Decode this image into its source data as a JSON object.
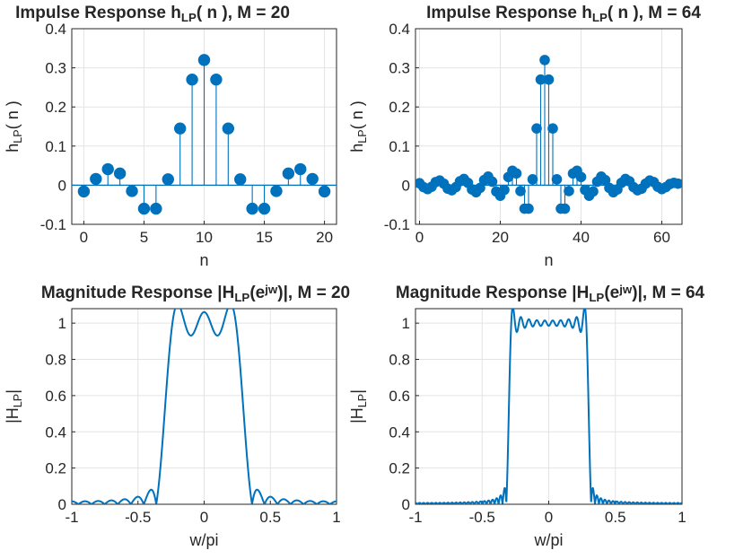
{
  "chart_data": [
    {
      "type": "stem",
      "title": {
        "main": "Impulse Response h",
        "sub": "LP",
        "tail": "( n ), M = 20"
      },
      "xlabel": "n",
      "ylabel": {
        "main": "h",
        "sub": "LP",
        "tail": "( n )"
      },
      "xlim": [
        -1,
        21
      ],
      "ylim": [
        -0.1,
        0.4
      ],
      "xticks": [
        "0",
        "5",
        "10",
        "15",
        "20"
      ],
      "yticks": [
        "-0.1",
        "0",
        "0.1",
        "0.2",
        "0.3",
        "0.4"
      ],
      "grid": true,
      "color": "#0072BD",
      "x": [
        0,
        1,
        2,
        3,
        4,
        5,
        6,
        7,
        8,
        9,
        10,
        11,
        12,
        13,
        14,
        15,
        16,
        17,
        18,
        19,
        20
      ],
      "y": [
        -0.016,
        0.016,
        0.041,
        0.03,
        -0.015,
        -0.06,
        -0.06,
        0.015,
        0.145,
        0.27,
        0.32,
        0.27,
        0.145,
        0.015,
        -0.06,
        -0.06,
        -0.015,
        0.03,
        0.041,
        0.016,
        -0.016
      ]
    },
    {
      "type": "stem",
      "title": {
        "main": "Impulse Response h",
        "sub": "LP",
        "tail": "( n ), M = 64"
      },
      "xlabel": "n",
      "ylabel": {
        "main": "h",
        "sub": "LP",
        "tail": "( n )"
      },
      "xlim": [
        -1,
        65
      ],
      "ylim": [
        -0.1,
        0.4
      ],
      "xticks": [
        "0",
        "20",
        "40",
        "60"
      ],
      "yticks": [
        "-0.1",
        "0",
        "0.1",
        "0.2",
        "0.3",
        "0.4"
      ],
      "grid": true,
      "color": "#0072BD",
      "x": [
        0,
        1,
        2,
        3,
        4,
        5,
        6,
        7,
        8,
        9,
        10,
        11,
        12,
        13,
        14,
        15,
        16,
        17,
        18,
        19,
        20,
        21,
        22,
        23,
        24,
        25,
        26,
        27,
        28,
        29,
        30,
        31,
        32,
        33,
        34,
        35,
        36,
        37,
        38,
        39,
        40,
        41,
        42,
        43,
        44,
        45,
        46,
        47,
        48,
        49,
        50,
        51,
        52,
        53,
        54,
        55,
        56,
        57,
        58,
        59,
        60,
        61,
        62,
        63,
        64
      ],
      "y": [
        0.005,
        -0.005,
        -0.01,
        -0.004,
        0.008,
        0.012,
        0.004,
        -0.009,
        -0.013,
        -0.005,
        0.01,
        0.016,
        0.006,
        -0.011,
        -0.018,
        -0.007,
        0.013,
        0.022,
        0.009,
        -0.016,
        -0.027,
        -0.012,
        0.021,
        0.037,
        0.03,
        -0.015,
        -0.06,
        -0.06,
        0.015,
        0.145,
        0.27,
        0.32,
        0.27,
        0.145,
        0.015,
        -0.06,
        -0.06,
        -0.015,
        0.03,
        0.037,
        0.021,
        -0.012,
        -0.027,
        -0.016,
        0.009,
        0.022,
        0.013,
        -0.007,
        -0.018,
        -0.011,
        0.006,
        0.016,
        0.01,
        -0.005,
        -0.013,
        -0.009,
        0.004,
        0.012,
        0.008,
        -0.004,
        -0.01,
        -0.005,
        0.003,
        0.006,
        0.004
      ]
    },
    {
      "type": "line",
      "title": {
        "main": "Magnitude Response |H",
        "sub": "LP",
        "mid": "(e",
        "sup": "jw",
        "tail": ")|, M = 20"
      },
      "xlabel": "w/pi",
      "ylabel": {
        "main": "|H",
        "sub": "LP",
        "tail": "|"
      },
      "xlim": [
        -1,
        1
      ],
      "ylim": [
        0,
        1.08
      ],
      "xticks": [
        "-1",
        "-0.5",
        "0",
        "0.5",
        "1"
      ],
      "yticks": [
        "0",
        "0.2",
        "0.4",
        "0.6",
        "0.8",
        "1"
      ],
      "grid": true,
      "color": "#0072BD",
      "M": 20,
      "cutoff": 0.3
    },
    {
      "type": "line",
      "title": {
        "main": "Magnitude Response |H",
        "sub": "LP",
        "mid": "(e",
        "sup": "jw",
        "tail": ")|, M = 64"
      },
      "xlabel": "w/pi",
      "ylabel": {
        "main": "|H",
        "sub": "LP",
        "tail": "|"
      },
      "xlim": [
        -1,
        1
      ],
      "ylim": [
        0,
        1.08
      ],
      "xticks": [
        "-1",
        "-0.5",
        "0",
        "0.5",
        "1"
      ],
      "yticks": [
        "0",
        "0.2",
        "0.4",
        "0.6",
        "0.8",
        "1"
      ],
      "grid": true,
      "color": "#0072BD",
      "M": 64,
      "cutoff": 0.3
    }
  ]
}
